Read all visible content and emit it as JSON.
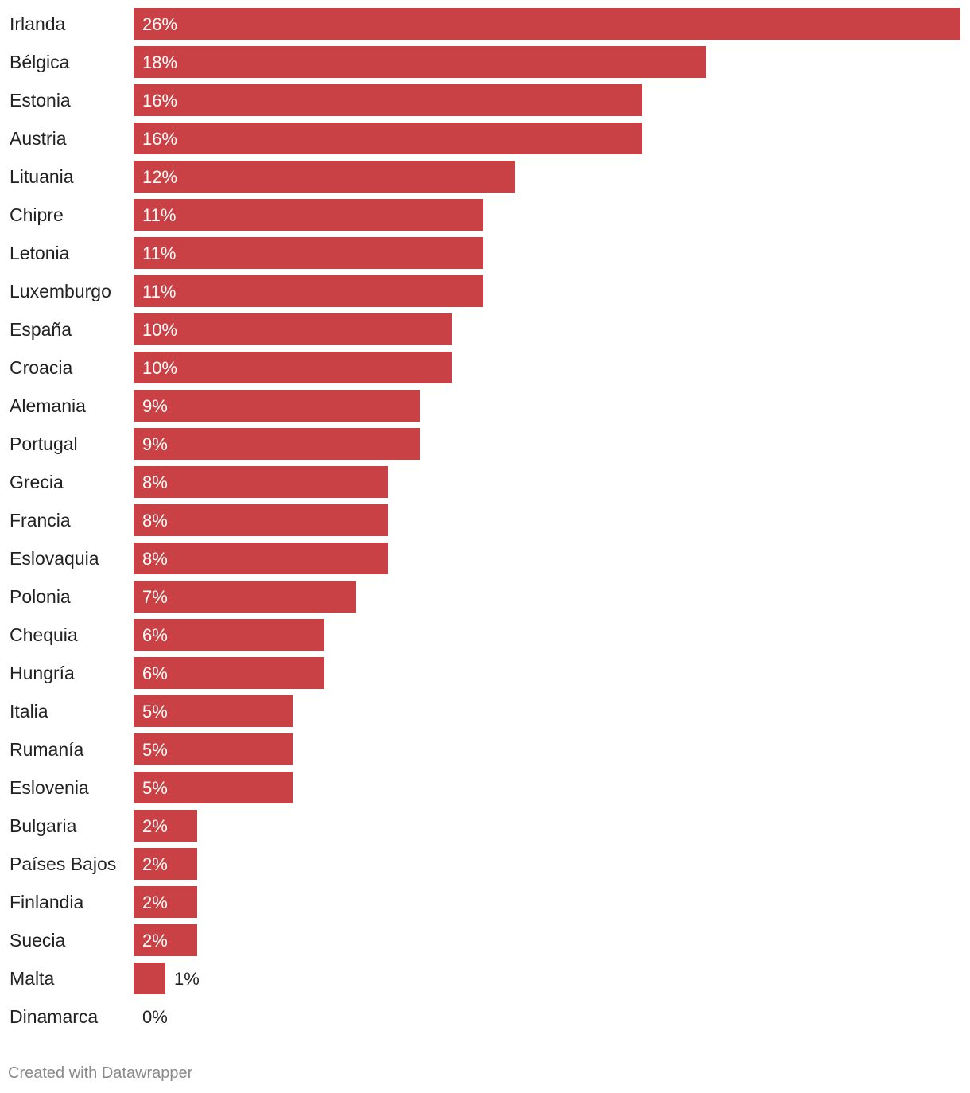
{
  "chart_data": {
    "type": "bar",
    "orientation": "horizontal",
    "title": "",
    "xlabel": "",
    "ylabel": "",
    "xlim": [
      0,
      26
    ],
    "grid": false,
    "value_suffix": "%",
    "categories": [
      "Irlanda",
      "Bélgica",
      "Estonia",
      "Austria",
      "Lituania",
      "Chipre",
      "Letonia",
      "Luxemburgo",
      "España",
      "Croacia",
      "Alemania",
      "Portugal",
      "Grecia",
      "Francia",
      "Eslovaquia",
      "Polonia",
      "Chequia",
      "Hungría",
      "Italia",
      "Rumanía",
      "Eslovenia",
      "Bulgaria",
      "Países Bajos",
      "Finlandia",
      "Suecia",
      "Malta",
      "Dinamarca"
    ],
    "values": [
      26,
      18,
      16,
      16,
      12,
      11,
      11,
      11,
      10,
      10,
      9,
      9,
      8,
      8,
      8,
      7,
      6,
      6,
      5,
      5,
      5,
      2,
      2,
      2,
      2,
      1,
      0
    ],
    "value_labels": [
      "26%",
      "18%",
      "16%",
      "16%",
      "12%",
      "11%",
      "11%",
      "11%",
      "10%",
      "10%",
      "9%",
      "9%",
      "8%",
      "8%",
      "8%",
      "7%",
      "6%",
      "6%",
      "5%",
      "5%",
      "5%",
      "2%",
      "2%",
      "2%",
      "2%",
      "1%",
      "0%"
    ]
  },
  "colors": {
    "bar": "#c94144",
    "label_inside": "#ffffff",
    "label_outside": "#222222"
  },
  "footer": {
    "credit": "Created with Datawrapper"
  }
}
